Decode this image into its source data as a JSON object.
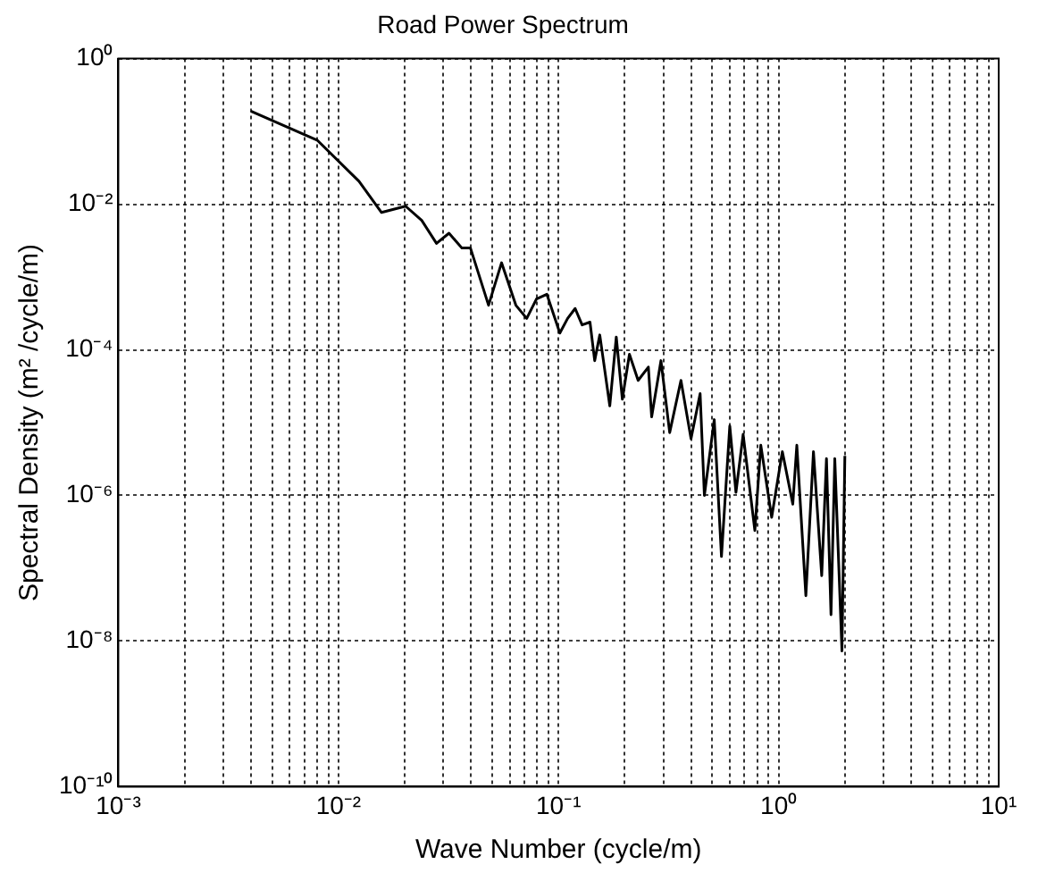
{
  "chart_data": {
    "type": "line",
    "title": "Road Power Spectrum",
    "xlabel": "Wave Number (cycle/m)",
    "ylabel": "Spectral Density (m² /cycle/m)",
    "log": "xy",
    "grid": true,
    "legend": false,
    "marker": "none",
    "line_style": "solid",
    "xlim": [
      0.001,
      10
    ],
    "ylim": [
      1e-10,
      1
    ],
    "xticks": [
      {
        "value": 0.001,
        "label": "10⁻³"
      },
      {
        "value": 0.002,
        "label": null
      },
      {
        "value": 0.003,
        "label": null
      },
      {
        "value": 0.004,
        "label": null
      },
      {
        "value": 0.005,
        "label": null
      },
      {
        "value": 0.006,
        "label": null
      },
      {
        "value": 0.007,
        "label": null
      },
      {
        "value": 0.008,
        "label": null
      },
      {
        "value": 0.009,
        "label": null
      },
      {
        "value": 0.01,
        "label": "10⁻²"
      },
      {
        "value": 0.02,
        "label": null
      },
      {
        "value": 0.03,
        "label": null
      },
      {
        "value": 0.04,
        "label": null
      },
      {
        "value": 0.05,
        "label": null
      },
      {
        "value": 0.06,
        "label": null
      },
      {
        "value": 0.07,
        "label": null
      },
      {
        "value": 0.08,
        "label": null
      },
      {
        "value": 0.09,
        "label": null
      },
      {
        "value": 0.1,
        "label": "10⁻¹"
      },
      {
        "value": 0.2,
        "label": null
      },
      {
        "value": 0.3,
        "label": null
      },
      {
        "value": 0.4,
        "label": null
      },
      {
        "value": 0.5,
        "label": null
      },
      {
        "value": 0.6,
        "label": null
      },
      {
        "value": 0.7,
        "label": null
      },
      {
        "value": 0.8,
        "label": null
      },
      {
        "value": 0.9,
        "label": null
      },
      {
        "value": 1,
        "label": "10⁰"
      },
      {
        "value": 2,
        "label": null
      },
      {
        "value": 3,
        "label": null
      },
      {
        "value": 4,
        "label": null
      },
      {
        "value": 5,
        "label": null
      },
      {
        "value": 6,
        "label": null
      },
      {
        "value": 7,
        "label": null
      },
      {
        "value": 8,
        "label": null
      },
      {
        "value": 9,
        "label": null
      },
      {
        "value": 10,
        "label": "10¹"
      }
    ],
    "yticks": [
      {
        "value": 1e-10,
        "label": "10⁻¹⁰"
      },
      {
        "value": 1e-08,
        "label": "10⁻⁸"
      },
      {
        "value": 1e-06,
        "label": "10⁻⁶"
      },
      {
        "value": 0.0001,
        "label": "10⁻⁴"
      },
      {
        "value": 0.01,
        "label": "10⁻²"
      },
      {
        "value": 1,
        "label": "10⁰"
      }
    ],
    "series": [
      {
        "color": "#000000",
        "x": [
          0.004,
          0.008,
          0.0124,
          0.0157,
          0.0202,
          0.0239,
          0.0279,
          0.0318,
          0.0364,
          0.0398,
          0.0481,
          0.0551,
          0.064,
          0.0717,
          0.0794,
          0.0885,
          0.1014,
          0.11,
          0.119,
          0.128,
          0.139,
          0.146,
          0.154,
          0.171,
          0.183,
          0.195,
          0.21,
          0.23,
          0.256,
          0.265,
          0.292,
          0.32,
          0.36,
          0.4,
          0.44,
          0.46,
          0.51,
          0.55,
          0.6,
          0.64,
          0.69,
          0.78,
          0.83,
          0.93,
          1.04,
          1.16,
          1.21,
          1.33,
          1.44,
          1.57,
          1.65,
          1.73,
          1.8,
          1.94,
          2.0
        ],
        "values": [
          0.19,
          0.076,
          0.0207,
          0.0077,
          0.0094,
          0.006,
          0.0029,
          0.004,
          0.0025,
          0.0025,
          0.00041,
          0.00157,
          0.00041,
          0.00027,
          0.0005,
          0.00058,
          0.00017,
          0.00027,
          0.00037,
          0.00022,
          0.00024,
          7.1e-05,
          0.00016,
          1.7e-05,
          0.00015,
          2.1e-05,
          8.7e-05,
          3.8e-05,
          5.8e-05,
          1.2e-05,
          7.1e-05,
          7.3e-06,
          3.8e-05,
          6e-06,
          2.5e-05,
          1e-06,
          1.1e-05,
          1.45e-07,
          9e-06,
          1.1e-06,
          6.9e-06,
          3.3e-07,
          4.9e-06,
          5e-07,
          4e-06,
          7.6e-07,
          4.9e-06,
          4.2e-08,
          4e-06,
          7.9e-08,
          3.2e-06,
          2.3e-08,
          3.2e-06,
          7.3e-09,
          3.5e-06
        ]
      }
    ]
  }
}
